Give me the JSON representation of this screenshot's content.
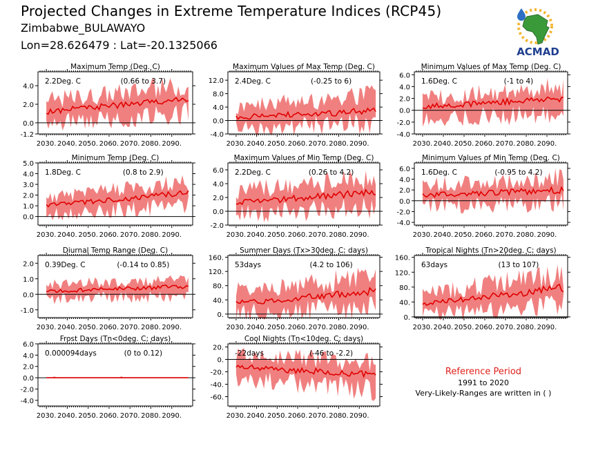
{
  "header": {
    "title": "Projected Changes in Extreme Temperature Indices (RCP45)",
    "location": "Zimbabwe_BULAWAYO",
    "coords": "Lon=28.626479 : Lat=-20.1325066",
    "logo_text": "ACMAD"
  },
  "reference": {
    "title": "Reference Period",
    "years": "1991 to 2020",
    "note": "Very-Likely-Ranges are written in ( )"
  },
  "colors": {
    "band": "#f08080",
    "line": "#e00000",
    "zero": "#000000",
    "ref_title": "#e0201a"
  },
  "chart_data": [
    {
      "type": "area",
      "title": "Maximum Temp (Deg. C)",
      "value_label": "2.2Deg. C",
      "range_label": "(0.66 to 3.7)",
      "x_start": 2026,
      "x_end": 2100,
      "ylim": [
        -1.2,
        5.5
      ],
      "yticks": [
        "-1.2",
        "0.0",
        "2.0",
        "4.0"
      ],
      "ytick_values": [
        -1.2,
        0,
        2,
        4
      ],
      "xticks": [
        "2030.",
        "2040.",
        "2050.",
        "2060.",
        "2070.",
        "2080.",
        "2090."
      ],
      "series": [
        {
          "median_start": 1.2,
          "median_end": 2.6,
          "low_start": 0.0,
          "low_end": 1.0,
          "high_start": 2.4,
          "high_end": 4.0
        }
      ]
    },
    {
      "type": "area",
      "title": "Maximum Values of Max Temp (Deg. C)",
      "value_label": "2.4Deg. C",
      "range_label": "(-0.25 to 6)",
      "x_start": 2026,
      "x_end": 2100,
      "ylim": [
        -4.0,
        14.5
      ],
      "yticks": [
        "-4.0",
        "0.0",
        "4.0",
        "8.0",
        "12.0"
      ],
      "ytick_values": [
        -4,
        0,
        4,
        8,
        12
      ],
      "xticks": [
        "2030.",
        "2040.",
        "2050.",
        "2060.",
        "2070.",
        "2080.",
        "2090."
      ],
      "series": [
        {
          "median_start": 1.0,
          "median_end": 2.8,
          "low_start": -2.0,
          "low_end": -1.0,
          "high_start": 4.0,
          "high_end": 8.0
        }
      ]
    },
    {
      "type": "area",
      "title": "Minimum Values of Max Temp (Deg. C)",
      "value_label": "1.6Deg. C",
      "range_label": "(-1 to 4)",
      "x_start": 2026,
      "x_end": 2100,
      "ylim": [
        -4.0,
        6.5
      ],
      "yticks": [
        "-4.0",
        "-2.0",
        "0.0",
        "2.0",
        "4.0",
        "6.0"
      ],
      "ytick_values": [
        -4,
        -2,
        0,
        2,
        4,
        6
      ],
      "xticks": [
        "2030.",
        "2040.",
        "2050.",
        "2060.",
        "2070.",
        "2080.",
        "2090."
      ],
      "series": [
        {
          "median_start": 0.6,
          "median_end": 2.0,
          "low_start": -1.5,
          "low_end": -0.5,
          "high_start": 2.0,
          "high_end": 4.0
        }
      ]
    },
    {
      "type": "area",
      "title": "Minimum Temp (Deg. C)",
      "value_label": "1.8Deg. C",
      "range_label": "(0.8 to 2.9)",
      "x_start": 2026,
      "x_end": 2100,
      "ylim": [
        -0.8,
        5.0
      ],
      "yticks": [
        "0.0",
        "1.0",
        "2.0",
        "3.0",
        "4.0",
        "5.0"
      ],
      "ytick_values": [
        0,
        1,
        2,
        3,
        4,
        5
      ],
      "xticks": [
        "2030.",
        "2040.",
        "2050.",
        "2060.",
        "2070.",
        "2080.",
        "2090."
      ],
      "series": [
        {
          "median_start": 1.0,
          "median_end": 2.2,
          "low_start": 0.2,
          "low_end": 1.0,
          "high_start": 1.8,
          "high_end": 3.2
        }
      ]
    },
    {
      "type": "area",
      "title": "Maximum Values of Min Temp (Deg. C)",
      "value_label": "2.2Deg. C",
      "range_label": "(0.26 to 4.2)",
      "x_start": 2026,
      "x_end": 2100,
      "ylim": [
        -2.0,
        7.0
      ],
      "yticks": [
        "-2.0",
        "0.0",
        "2.0",
        "4.0",
        "6.0"
      ],
      "ytick_values": [
        -2,
        0,
        2,
        4,
        6
      ],
      "xticks": [
        "2030.",
        "2040.",
        "2050.",
        "2060.",
        "2070.",
        "2080.",
        "2090."
      ],
      "series": [
        {
          "median_start": 1.2,
          "median_end": 2.8,
          "low_start": -0.5,
          "low_end": 0.6,
          "high_start": 3.0,
          "high_end": 4.8
        }
      ]
    },
    {
      "type": "area",
      "title": "Minimum Values of Min Temp (Deg. C)",
      "value_label": "1.6Deg. C",
      "range_label": "(-0.95 to 4.2)",
      "x_start": 2026,
      "x_end": 2100,
      "ylim": [
        -4.5,
        7.0
      ],
      "yticks": [
        "-4.0",
        "-2.0",
        "0.0",
        "2.0",
        "4.0",
        "6.0"
      ],
      "ytick_values": [
        -4,
        -2,
        0,
        2,
        4,
        6
      ],
      "xticks": [
        "2030.",
        "2040.",
        "2050.",
        "2060.",
        "2070.",
        "2080.",
        "2090."
      ],
      "series": [
        {
          "median_start": 1.0,
          "median_end": 2.0,
          "low_start": -1.0,
          "low_end": -0.5,
          "high_start": 2.8,
          "high_end": 4.2
        }
      ]
    },
    {
      "type": "area",
      "title": "Diurnal Temp Range (Deg. C)",
      "value_label": "0.39Deg. C",
      "range_label": "(-0.14 to 0.85)",
      "x_start": 2026,
      "x_end": 2100,
      "ylim": [
        -1.5,
        2.5
      ],
      "yticks": [
        "-1.0",
        "0.0",
        "1.0",
        "2.0"
      ],
      "ytick_values": [
        -1,
        0,
        1,
        2
      ],
      "xticks": [
        "2030.",
        "2040.",
        "2050.",
        "2060.",
        "2070.",
        "2080.",
        "2090."
      ],
      "series": [
        {
          "median_start": 0.2,
          "median_end": 0.5,
          "low_start": -0.3,
          "low_end": -0.1,
          "high_start": 0.6,
          "high_end": 1.0
        }
      ]
    },
    {
      "type": "area",
      "title": "Summer Days (Tx>30deg. C; days)",
      "value_label": "53days",
      "range_label": "(4.2 to 106)",
      "x_start": 2026,
      "x_end": 2100,
      "ylim": [
        -10,
        165
      ],
      "yticks": [
        "0.",
        "40.",
        "80.",
        "120.",
        "160."
      ],
      "ytick_values": [
        0,
        40,
        80,
        120,
        160
      ],
      "xticks": [
        "2030.",
        "2040.",
        "2050.",
        "2060.",
        "2070.",
        "2080.",
        "2090."
      ],
      "series": [
        {
          "median_start": 30,
          "median_end": 65,
          "low_start": 5,
          "low_end": 20,
          "high_start": 65,
          "high_end": 105
        }
      ]
    },
    {
      "type": "area",
      "title": "Tropical Nights (Tn>20deg. C; days)",
      "value_label": "63days",
      "range_label": "(13 to 107)",
      "x_start": 2026,
      "x_end": 2100,
      "ylim": [
        -2,
        165
      ],
      "yticks": [
        "0.",
        "40.",
        "80.",
        "120.",
        "160."
      ],
      "ytick_values": [
        0,
        40,
        80,
        120,
        160
      ],
      "xticks": [
        "2030.",
        "2040.",
        "2050.",
        "2060.",
        "2070.",
        "2080.",
        "2090."
      ],
      "series": [
        {
          "median_start": 35,
          "median_end": 78,
          "low_start": 8,
          "low_end": 25,
          "high_start": 60,
          "high_end": 115
        }
      ]
    },
    {
      "type": "area",
      "title": "Frost Days (Tn<0deg. C; days)",
      "value_label": "0.000094days",
      "range_label": "(0 to 0.12)",
      "x_start": 2026,
      "x_end": 2100,
      "ylim": [
        -5,
        6
      ],
      "yticks": [
        "-4.0",
        "-2.0",
        "0.0",
        "2.0",
        "4.0",
        "6.0"
      ],
      "ytick_values": [
        -4,
        -2,
        0,
        2,
        4,
        6
      ],
      "xticks": [
        "2030.",
        "2040.",
        "2050.",
        "2060.",
        "2070.",
        "2080.",
        "2090."
      ],
      "series": [
        {
          "median_start": 0,
          "median_end": 0,
          "low_start": 0,
          "low_end": 0,
          "high_start": 0.3,
          "high_end": 0.1
        }
      ]
    },
    {
      "type": "area",
      "title": "Cool Nights (Tn<10deg. C; days)",
      "value_label": "-22days",
      "range_label": "(-46 to -2.2)",
      "x_start": 2026,
      "x_end": 2100,
      "ylim": [
        -75,
        25
      ],
      "yticks": [
        "-60.",
        "-40.",
        "-20.",
        "0.",
        "20."
      ],
      "ytick_values": [
        -60,
        -40,
        -20,
        0,
        20
      ],
      "xticks": [
        "2030.",
        "2040.",
        "2050.",
        "2060.",
        "2070.",
        "2080.",
        "2090."
      ],
      "series": [
        {
          "median_start": -12,
          "median_end": -25,
          "low_start": -30,
          "low_end": -50,
          "high_start": 5,
          "high_end": -5
        }
      ]
    }
  ]
}
